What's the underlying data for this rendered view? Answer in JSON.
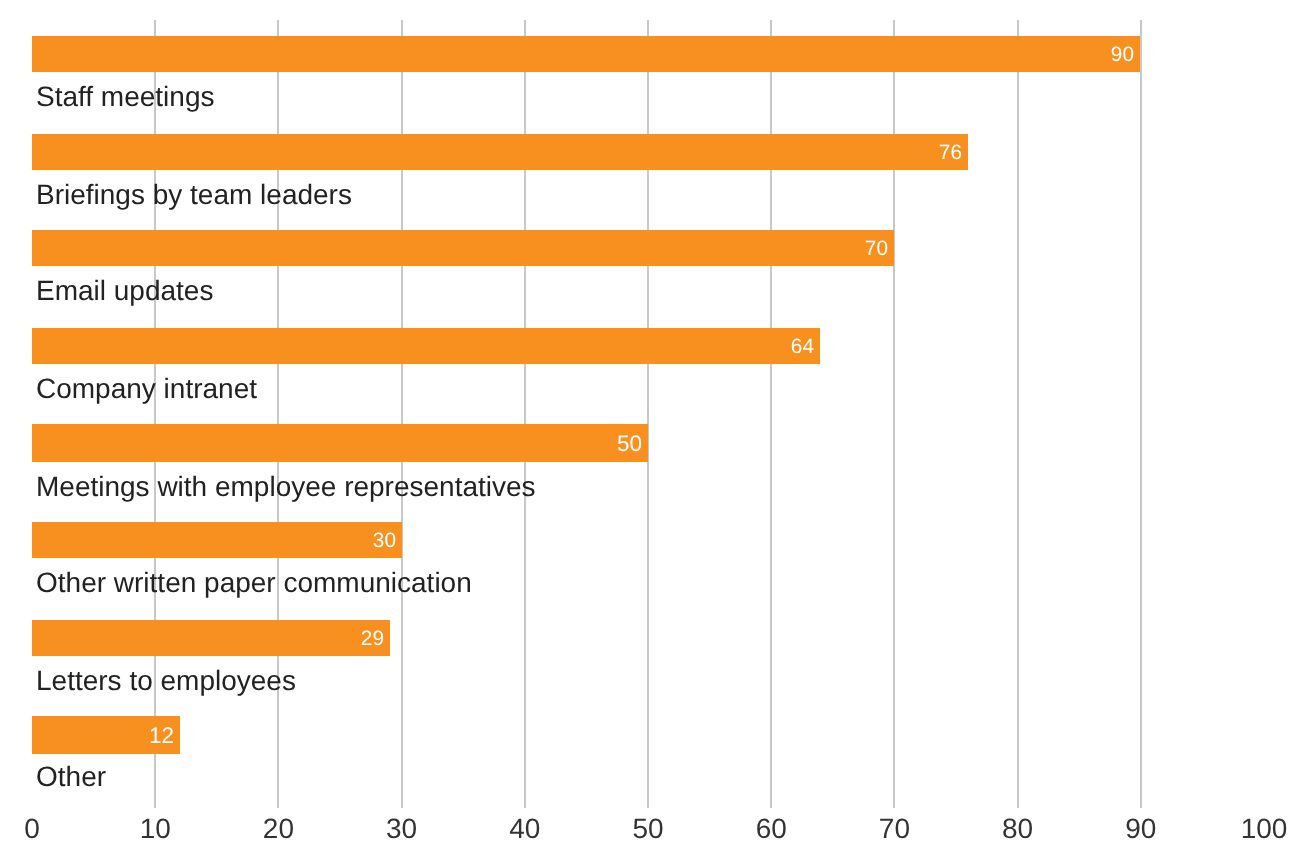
{
  "chart_data": {
    "type": "bar",
    "orientation": "horizontal",
    "categories": [
      "Staff meetings",
      "Briefings by team leaders",
      "Email updates",
      "Company intranet",
      "Meetings with employee representatives",
      "Other written paper communication",
      "Letters to employees",
      "Other"
    ],
    "values": [
      90,
      76,
      70,
      64,
      50,
      30,
      29,
      12
    ],
    "color": "#f7901e",
    "xlim": [
      0,
      100
    ],
    "xticks": [
      0,
      10,
      20,
      30,
      40,
      50,
      60,
      70,
      80,
      90,
      100
    ],
    "grid": "x",
    "data_labels": true
  }
}
